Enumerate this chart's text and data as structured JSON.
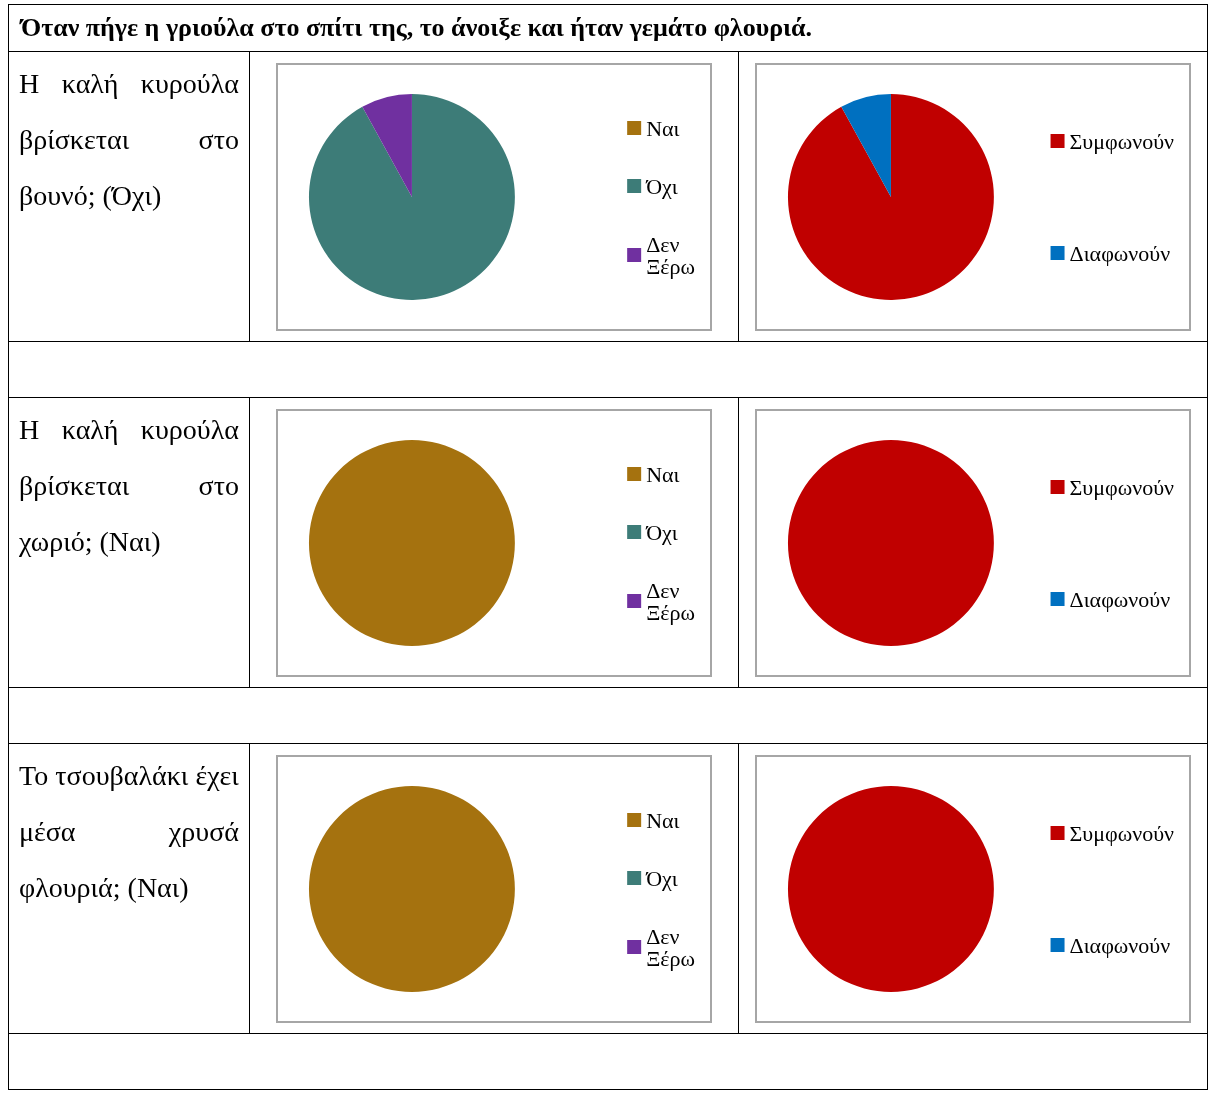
{
  "chart_data": [
    {
      "type": "pie",
      "title": "Όταν πήγε η γριούλα στο σπίτι της, το άνοιξε και ήταν γεμάτο φλουριά.",
      "annotations": [
        "Η καλή κυρούλα βρίσκεται στο βουνό; (Όχι)"
      ],
      "categories": [
        "Ναι",
        "Όχι",
        "Δεν Ξέρω"
      ],
      "values": [
        0,
        92,
        8
      ],
      "colors": [
        "#a5720f",
        "#3d7c78",
        "#7030a0"
      ],
      "legend": "right"
    },
    {
      "type": "pie",
      "categories": [
        "Συμφωνούν",
        "Διαφωνούν"
      ],
      "values": [
        92,
        8
      ],
      "colors": [
        "#c00000",
        "#0070c0"
      ],
      "legend": "right"
    },
    {
      "type": "pie",
      "annotations": [
        "Η καλή κυρούλα βρίσκεται στο χωριό; (Ναι)"
      ],
      "categories": [
        "Ναι",
        "Όχι",
        "Δεν Ξέρω"
      ],
      "values": [
        100,
        0,
        0
      ],
      "colors": [
        "#a5720f",
        "#3d7c78",
        "#7030a0"
      ],
      "legend": "right"
    },
    {
      "type": "pie",
      "categories": [
        "Συμφωνούν",
        "Διαφωνούν"
      ],
      "values": [
        100,
        0
      ],
      "colors": [
        "#c00000",
        "#0070c0"
      ],
      "legend": "right"
    },
    {
      "type": "pie",
      "annotations": [
        "Το τσουβαλάκι έχει μέσα χρυσά φλουριά; (Ναι)"
      ],
      "categories": [
        "Ναι",
        "Όχι",
        "Δεν Ξέρω"
      ],
      "values": [
        100,
        0,
        0
      ],
      "colors": [
        "#a5720f",
        "#3d7c78",
        "#7030a0"
      ],
      "legend": "right"
    },
    {
      "type": "pie",
      "categories": [
        "Συμφωνούν",
        "Διαφωνούν"
      ],
      "values": [
        100,
        0
      ],
      "colors": [
        "#c00000",
        "#0070c0"
      ],
      "legend": "right"
    }
  ]
}
